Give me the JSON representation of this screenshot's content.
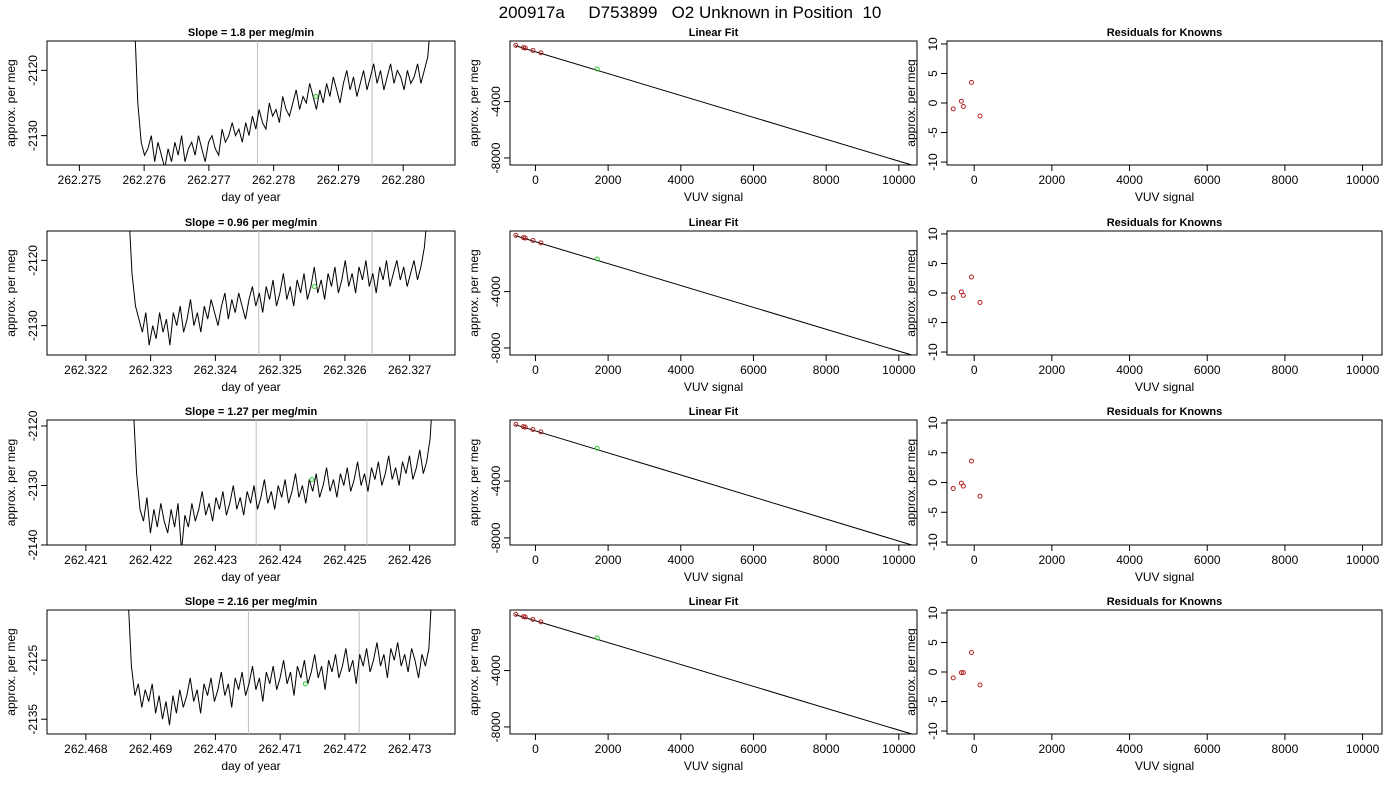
{
  "title": "200917a     D753899   O2 Unknown in Position  10",
  "colors": {
    "line": "#000000",
    "marker_known": "#b22222",
    "marker_unknown": "#32cd32",
    "vline": "#bebebe"
  },
  "chart_data": [
    {
      "type": "line",
      "title": "Slope =  1.8  per meg/min",
      "xlabel": "day of year",
      "ylabel": "approx. per meg",
      "xlim": [
        262.2745,
        262.2808
      ],
      "ylim": [
        -2134.5,
        -2115.5
      ],
      "x_ticks": [
        "262.275",
        "262.276",
        "262.277",
        "262.278",
        "262.279",
        "262.280"
      ],
      "y_ticks": [
        "-2120",
        "-2130"
      ],
      "vlines": [
        262.27775,
        262.27952
      ],
      "highlight_point": {
        "x": 262.27865,
        "y": -2124
      },
      "series": [
        {
          "x_start": 262.27585,
          "x_end": 262.28043,
          "values": [
            -2112,
            -2125,
            -2131,
            -2133,
            -2132,
            -2130,
            -2134,
            -2131,
            -2133,
            -2135,
            -2132,
            -2134,
            -2131,
            -2133,
            -2130,
            -2134,
            -2132,
            -2131,
            -2133,
            -2130,
            -2132,
            -2134,
            -2131,
            -2130,
            -2132,
            -2133,
            -2129,
            -2131,
            -2130,
            -2128,
            -2130,
            -2129,
            -2131,
            -2128,
            -2130,
            -2127,
            -2129,
            -2126,
            -2128,
            -2129,
            -2125,
            -2127,
            -2126,
            -2128,
            -2124,
            -2126,
            -2127,
            -2125,
            -2123,
            -2126,
            -2124,
            -2125,
            -2122,
            -2124,
            -2126,
            -2123,
            -2125,
            -2122,
            -2124,
            -2121,
            -2123,
            -2125,
            -2122,
            -2120,
            -2123,
            -2121,
            -2124,
            -2122,
            -2120,
            -2123,
            -2121,
            -2119,
            -2122,
            -2120,
            -2123,
            -2121,
            -2119,
            -2122,
            -2120,
            -2121,
            -2123,
            -2120,
            -2122,
            -2121,
            -2119,
            -2122,
            -2120,
            -2118,
            -2112
          ]
        }
      ]
    },
    {
      "type": "line",
      "title": "Linear Fit",
      "xlabel": "VUV signal",
      "ylabel": "approx. per meg",
      "xlim": [
        -700,
        10500
      ],
      "ylim": [
        -8500,
        300
      ],
      "x_ticks": [
        "0",
        "2000",
        "4000",
        "6000",
        "8000",
        "10000"
      ],
      "y_ticks": [
        "-4000",
        "-8000"
      ],
      "fit_line": {
        "x": [
          -560,
          10380
        ],
        "y": [
          -30,
          -8520
        ]
      },
      "known_points": {
        "x": [
          -540,
          -330,
          -280,
          -70,
          150
        ],
        "y": [
          -10,
          -170,
          -200,
          -370,
          -540
        ]
      },
      "unknown_point": {
        "x": 1700,
        "y": -1690
      }
    },
    {
      "type": "scatter",
      "title": "Residuals for Knowns",
      "xlabel": "VUV signal",
      "ylabel": "approx. per meg",
      "xlim": [
        -700,
        10500
      ],
      "ylim": [
        -10.5,
        10.5
      ],
      "x_ticks": [
        "0",
        "2000",
        "4000",
        "6000",
        "8000",
        "10000"
      ],
      "y_ticks": [
        "10",
        "5",
        "0",
        "-5",
        "-10"
      ],
      "points": {
        "x": [
          -540,
          -330,
          -280,
          -70,
          150
        ],
        "y": [
          -1,
          0.3,
          -0.6,
          3.5,
          -2.2
        ]
      }
    },
    {
      "type": "line",
      "title": "Slope =  0.96  per meg/min",
      "xlabel": "day of year",
      "ylabel": "approx. per meg",
      "xlim": [
        262.3214,
        262.3277
      ],
      "ylim": [
        -2134.5,
        -2115.5
      ],
      "x_ticks": [
        "262.322",
        "262.323",
        "262.324",
        "262.325",
        "262.326",
        "262.327"
      ],
      "y_ticks": [
        "-2120",
        "-2130"
      ],
      "vlines": [
        262.32467,
        262.32642
      ],
      "highlight_point": {
        "x": 262.32553,
        "y": -2124
      },
      "series": [
        {
          "x_start": 262.32266,
          "x_end": 262.32728,
          "values": [
            -2112,
            -2122,
            -2127,
            -2129,
            -2131,
            -2128,
            -2133,
            -2130,
            -2132,
            -2128,
            -2131,
            -2129,
            -2133,
            -2128,
            -2130,
            -2127,
            -2131,
            -2129,
            -2126,
            -2130,
            -2128,
            -2131,
            -2127,
            -2129,
            -2126,
            -2128,
            -2130,
            -2127,
            -2125,
            -2129,
            -2126,
            -2128,
            -2125,
            -2127,
            -2129,
            -2126,
            -2124,
            -2127,
            -2125,
            -2128,
            -2124,
            -2126,
            -2123,
            -2127,
            -2125,
            -2122,
            -2126,
            -2124,
            -2127,
            -2123,
            -2125,
            -2122,
            -2126,
            -2124,
            -2121,
            -2125,
            -2123,
            -2126,
            -2122,
            -2124,
            -2121,
            -2125,
            -2123,
            -2120,
            -2124,
            -2122,
            -2125,
            -2121,
            -2123,
            -2120,
            -2124,
            -2122,
            -2125,
            -2121,
            -2123,
            -2120,
            -2124,
            -2122,
            -2120,
            -2123,
            -2121,
            -2124,
            -2122,
            -2120,
            -2123,
            -2121,
            -2118,
            -2112
          ]
        }
      ]
    },
    {
      "type": "line",
      "title": "Linear Fit",
      "xlabel": "VUV signal",
      "ylabel": "approx. per meg",
      "xlim": [
        -700,
        10500
      ],
      "ylim": [
        -8500,
        300
      ],
      "x_ticks": [
        "0",
        "2000",
        "4000",
        "6000",
        "8000",
        "10000"
      ],
      "y_ticks": [
        "-4000",
        "-8000"
      ],
      "fit_line": {
        "x": [
          -560,
          10380
        ],
        "y": [
          -30,
          -8520
        ]
      },
      "known_points": {
        "x": [
          -540,
          -330,
          -280,
          -70,
          150
        ],
        "y": [
          -10,
          -170,
          -200,
          -370,
          -540
        ]
      },
      "unknown_point": {
        "x": 1700,
        "y": -1690
      }
    },
    {
      "type": "scatter",
      "title": "Residuals for Knowns",
      "xlabel": "VUV signal",
      "ylabel": "approx. per meg",
      "xlim": [
        -700,
        10500
      ],
      "ylim": [
        -10.5,
        10.5
      ],
      "x_ticks": [
        "0",
        "2000",
        "4000",
        "6000",
        "8000",
        "10000"
      ],
      "y_ticks": [
        "10",
        "5",
        "0",
        "-5",
        "-10"
      ],
      "points": {
        "x": [
          -540,
          -330,
          -280,
          -70,
          150
        ],
        "y": [
          -0.8,
          0.2,
          -0.4,
          2.7,
          -1.6
        ]
      }
    },
    {
      "type": "line",
      "title": "Slope =  1.27  per meg/min",
      "xlabel": "day of year",
      "ylabel": "approx. per meg",
      "xlim": [
        262.4204,
        262.4267
      ],
      "ylim": [
        -2140,
        -2119
      ],
      "x_ticks": [
        "262.421",
        "262.422",
        "262.423",
        "262.424",
        "262.425",
        "262.426"
      ],
      "y_ticks": [
        "-2120",
        "-2130",
        "-2140"
      ],
      "vlines": [
        262.42363,
        262.42534
      ],
      "highlight_point": {
        "x": 262.42449,
        "y": -2129
      },
      "series": [
        {
          "x_start": 262.42173,
          "x_end": 262.42637,
          "values": [
            -2116,
            -2128,
            -2134,
            -2136,
            -2132,
            -2138,
            -2134,
            -2137,
            -2133,
            -2136,
            -2138,
            -2134,
            -2137,
            -2133,
            -2141,
            -2135,
            -2137,
            -2133,
            -2136,
            -2134,
            -2131,
            -2135,
            -2133,
            -2136,
            -2132,
            -2134,
            -2131,
            -2135,
            -2133,
            -2130,
            -2134,
            -2132,
            -2135,
            -2131,
            -2133,
            -2130,
            -2134,
            -2132,
            -2129,
            -2133,
            -2131,
            -2134,
            -2130,
            -2132,
            -2129,
            -2133,
            -2131,
            -2128,
            -2132,
            -2130,
            -2133,
            -2129,
            -2131,
            -2128,
            -2132,
            -2130,
            -2127,
            -2131,
            -2129,
            -2132,
            -2128,
            -2130,
            -2127,
            -2131,
            -2129,
            -2126,
            -2130,
            -2128,
            -2131,
            -2127,
            -2129,
            -2126,
            -2130,
            -2128,
            -2125,
            -2129,
            -2127,
            -2130,
            -2126,
            -2128,
            -2125,
            -2129,
            -2127,
            -2124,
            -2128,
            -2126,
            -2122,
            -2112
          ]
        }
      ]
    },
    {
      "type": "line",
      "title": "Linear Fit",
      "xlabel": "VUV signal",
      "ylabel": "approx. per meg",
      "xlim": [
        -700,
        10500
      ],
      "ylim": [
        -8500,
        300
      ],
      "x_ticks": [
        "0",
        "2000",
        "4000",
        "6000",
        "8000",
        "10000"
      ],
      "y_ticks": [
        "-4000",
        "-8000"
      ],
      "fit_line": {
        "x": [
          -560,
          10380
        ],
        "y": [
          -30,
          -8520
        ]
      },
      "known_points": {
        "x": [
          -540,
          -330,
          -280,
          -70,
          150
        ],
        "y": [
          -10,
          -170,
          -200,
          -370,
          -540
        ]
      },
      "unknown_point": {
        "x": 1700,
        "y": -1690
      }
    },
    {
      "type": "scatter",
      "title": "Residuals for Knowns",
      "xlabel": "VUV signal",
      "ylabel": "approx. per meg",
      "xlim": [
        -700,
        10500
      ],
      "ylim": [
        -10.5,
        10.5
      ],
      "x_ticks": [
        "0",
        "2000",
        "4000",
        "6000",
        "8000",
        "10000"
      ],
      "y_ticks": [
        "10",
        "5",
        "0",
        "-5",
        "-10"
      ],
      "points": {
        "x": [
          -540,
          -330,
          -280,
          -70,
          150
        ],
        "y": [
          -1,
          -0.1,
          -0.6,
          3.6,
          -2.3
        ]
      }
    },
    {
      "type": "line",
      "title": "Slope =  2.16  per meg/min",
      "xlabel": "day of year",
      "ylabel": "approx. per meg",
      "xlim": [
        262.4674,
        262.4737
      ],
      "ylim": [
        -2137.5,
        -2116.5
      ],
      "x_ticks": [
        "262.468",
        "262.469",
        "262.470",
        "262.471",
        "262.472",
        "262.473"
      ],
      "y_ticks": [
        "-2125",
        "-2135"
      ],
      "vlines": [
        262.47051,
        262.47222
      ],
      "highlight_point": {
        "x": 262.47139,
        "y": -2129
      },
      "series": [
        {
          "x_start": 262.46865,
          "x_end": 262.47335,
          "values": [
            -2114,
            -2126,
            -2131,
            -2129,
            -2133,
            -2130,
            -2132,
            -2129,
            -2134,
            -2131,
            -2135,
            -2132,
            -2136,
            -2131,
            -2134,
            -2130,
            -2133,
            -2131,
            -2128,
            -2132,
            -2130,
            -2134,
            -2129,
            -2131,
            -2128,
            -2132,
            -2130,
            -2127,
            -2131,
            -2129,
            -2133,
            -2128,
            -2130,
            -2127,
            -2131,
            -2129,
            -2126,
            -2130,
            -2128,
            -2132,
            -2127,
            -2129,
            -2126,
            -2130,
            -2128,
            -2125,
            -2129,
            -2127,
            -2131,
            -2126,
            -2128,
            -2125,
            -2129,
            -2127,
            -2124,
            -2128,
            -2126,
            -2130,
            -2125,
            -2127,
            -2124,
            -2128,
            -2126,
            -2123,
            -2127,
            -2125,
            -2129,
            -2124,
            -2126,
            -2123,
            -2127,
            -2125,
            -2122,
            -2126,
            -2124,
            -2128,
            -2123,
            -2125,
            -2122,
            -2126,
            -2124,
            -2127,
            -2123,
            -2125,
            -2128,
            -2124,
            -2126,
            -2123,
            -2112
          ]
        }
      ]
    },
    {
      "type": "line",
      "title": "Linear Fit",
      "xlabel": "VUV signal",
      "ylabel": "approx. per meg",
      "xlim": [
        -700,
        10500
      ],
      "ylim": [
        -8500,
        300
      ],
      "x_ticks": [
        "0",
        "2000",
        "4000",
        "6000",
        "8000",
        "10000"
      ],
      "y_ticks": [
        "-4000",
        "-8000"
      ],
      "fit_line": {
        "x": [
          -560,
          10380
        ],
        "y": [
          -30,
          -8520
        ]
      },
      "known_points": {
        "x": [
          -540,
          -330,
          -280,
          -70,
          150
        ],
        "y": [
          -10,
          -170,
          -200,
          -370,
          -540
        ]
      },
      "unknown_point": {
        "x": 1700,
        "y": -1690
      }
    },
    {
      "type": "scatter",
      "title": "Residuals for Knowns",
      "xlabel": "VUV signal",
      "ylabel": "approx. per meg",
      "xlim": [
        -700,
        10500
      ],
      "ylim": [
        -10.5,
        10.5
      ],
      "x_ticks": [
        "0",
        "2000",
        "4000",
        "6000",
        "8000",
        "10000"
      ],
      "y_ticks": [
        "10",
        "5",
        "0",
        "-5",
        "-10"
      ],
      "points": {
        "x": [
          -540,
          -330,
          -280,
          -70,
          150
        ],
        "y": [
          -1,
          -0.1,
          -0.1,
          3.3,
          -2.2
        ]
      }
    }
  ]
}
